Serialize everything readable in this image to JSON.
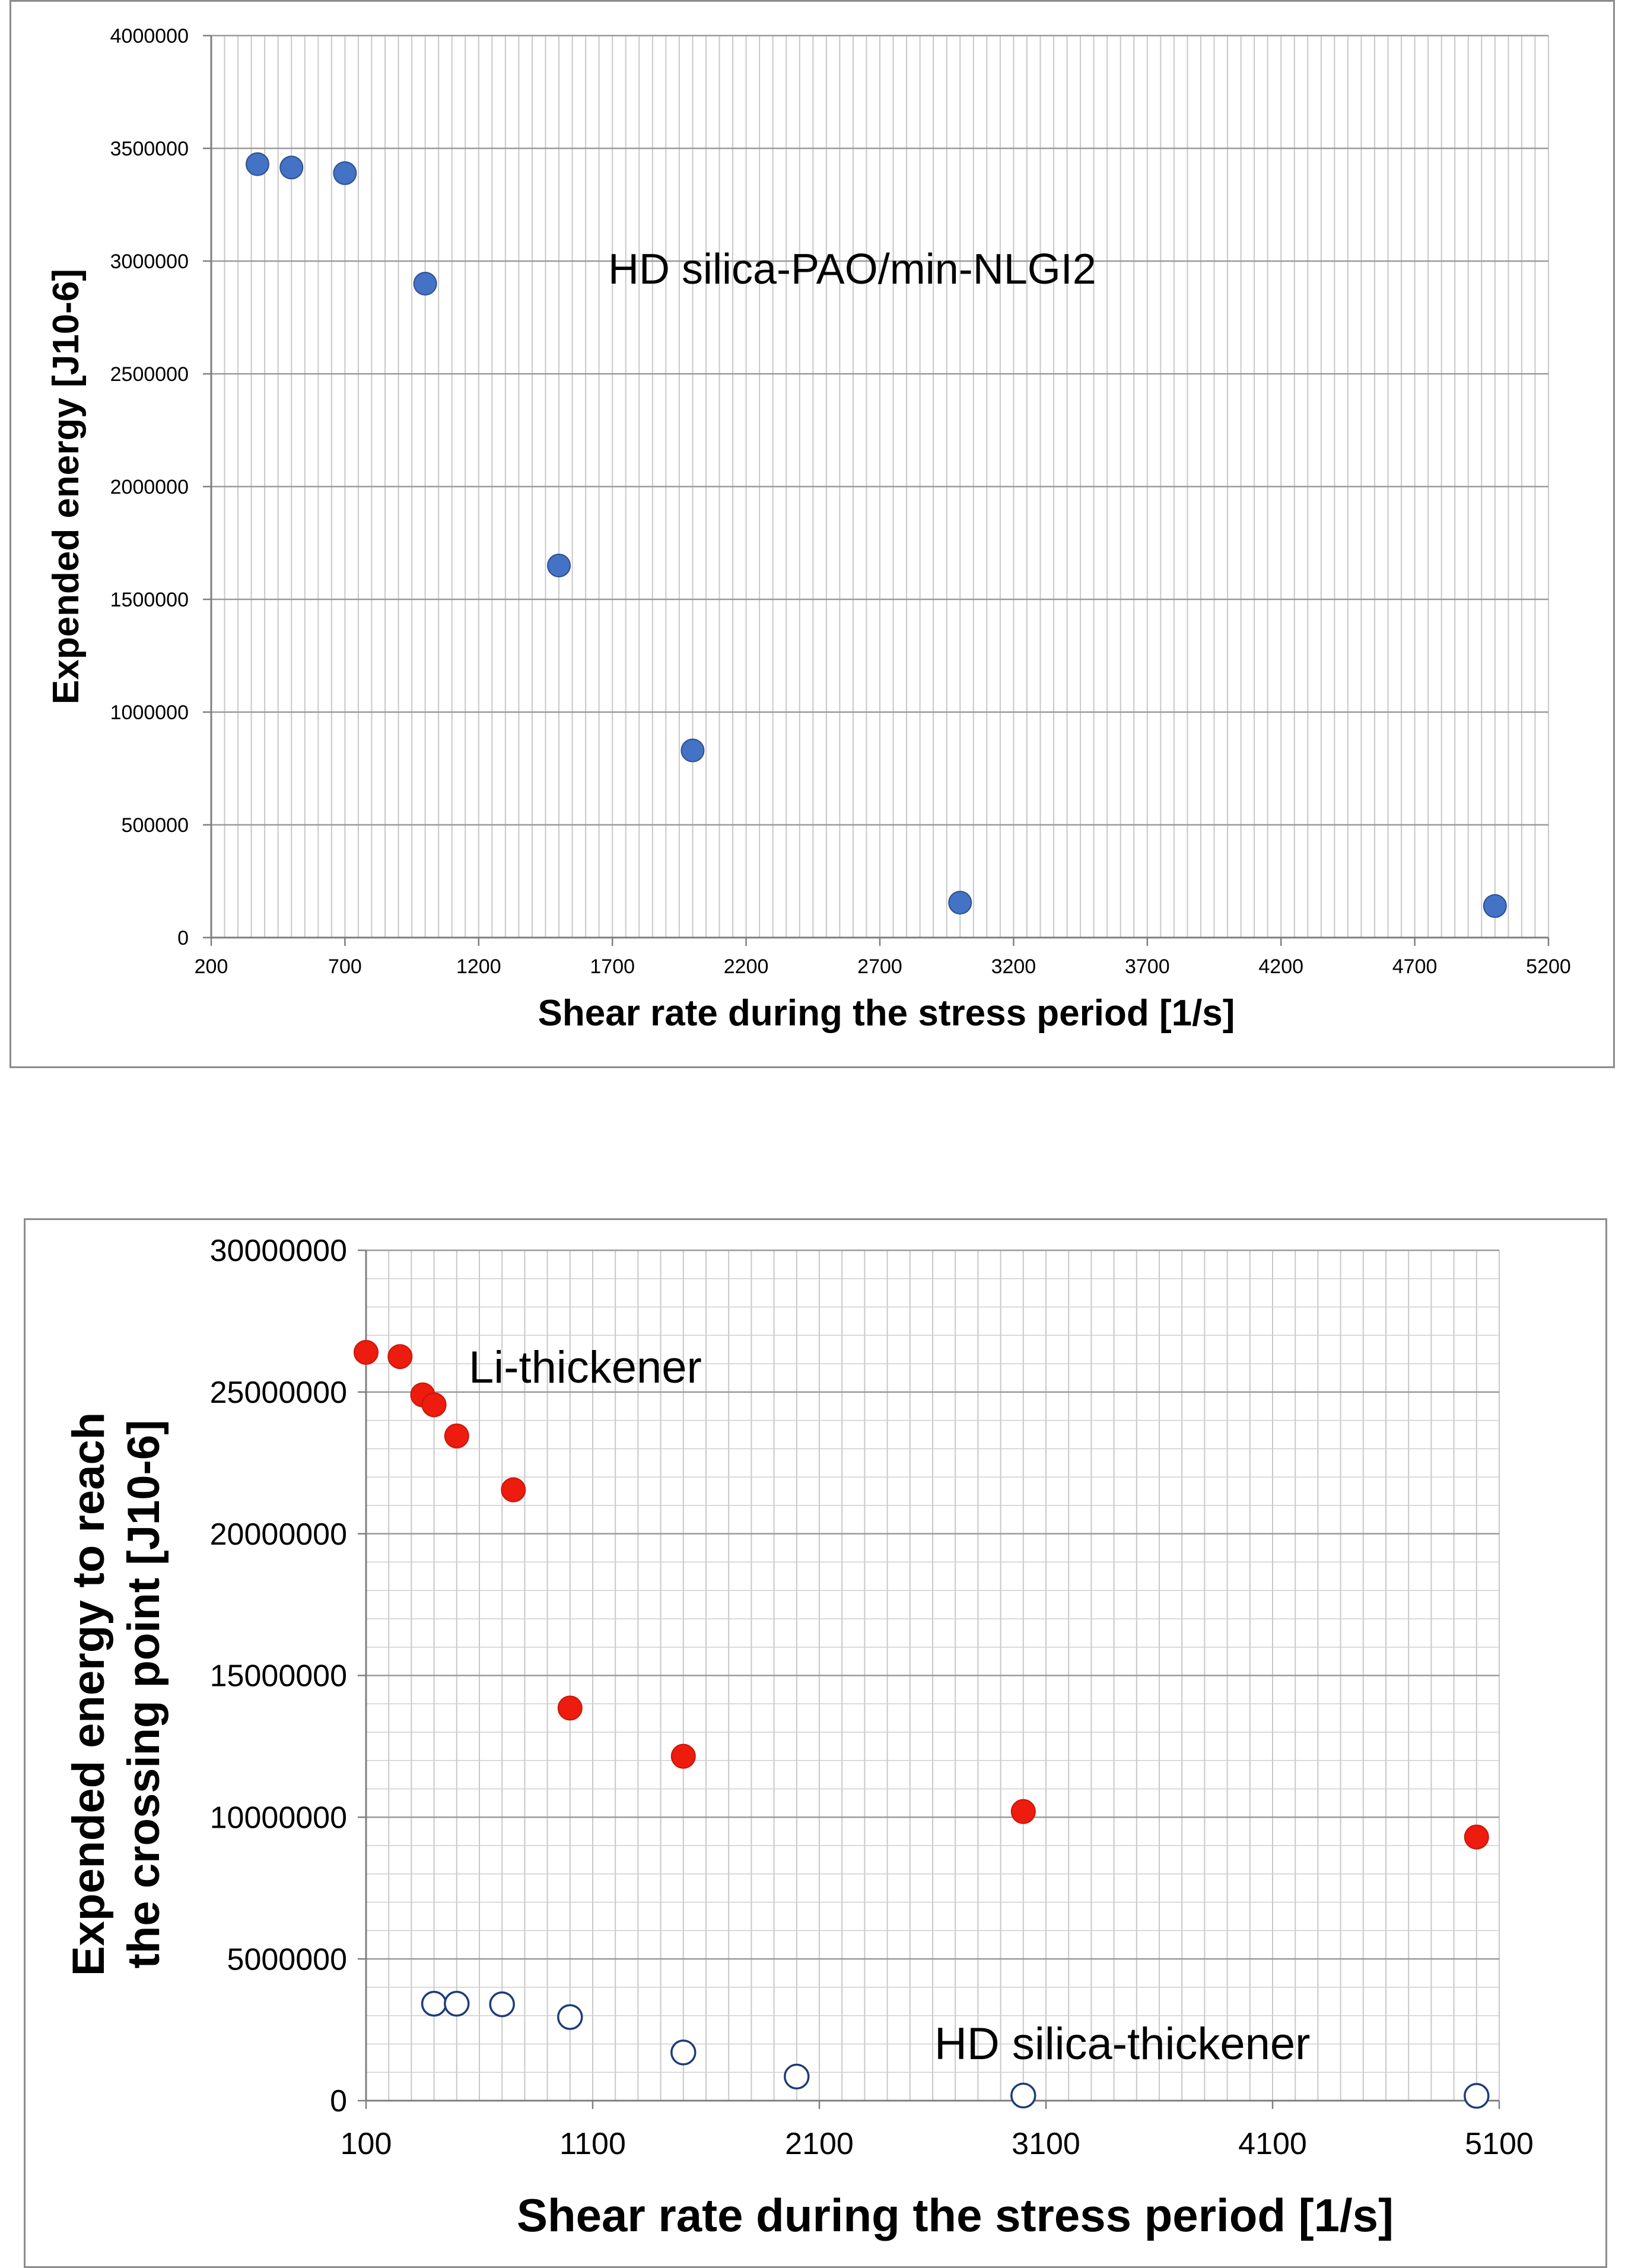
{
  "chart_data": [
    {
      "type": "scatter",
      "title": "",
      "xlabel": "Shear rate during the stress period [1/s]",
      "ylabel": "Expended energy [J10-6]",
      "xlim": [
        200,
        5200
      ],
      "ylim": [
        0,
        4000000
      ],
      "x_ticks": [
        "200",
        "700",
        "1200",
        "1700",
        "2200",
        "2700",
        "3200",
        "3700",
        "4200",
        "4700",
        "5200"
      ],
      "y_ticks": [
        "0",
        "500000",
        "1000000",
        "1500000",
        "2000000",
        "2500000",
        "3000000",
        "3500000",
        "4000000"
      ],
      "grid": true,
      "annotations": [
        "HD silica-PAO/min-NLGI2"
      ],
      "series": [
        {
          "name": "HD silica-PAO/min-NLGI2",
          "marker": "filled-circle",
          "color": "#4472c4",
          "x": [
            373,
            500,
            700,
            1000,
            1500,
            2000,
            3000,
            5000
          ],
          "y": [
            3430000,
            3415000,
            3390000,
            2900000,
            1650000,
            830000,
            155000,
            140000
          ]
        }
      ]
    },
    {
      "type": "scatter",
      "title": "",
      "xlabel": "Shear rate during the stress period [1/s]",
      "ylabel_lines": [
        "Expended energy to reach",
        "the crossing point [J10-6]"
      ],
      "xlim": [
        100,
        5100
      ],
      "ylim": [
        0,
        30000000
      ],
      "x_ticks": [
        "100",
        "1100",
        "2100",
        "3100",
        "4100",
        "5100"
      ],
      "y_ticks": [
        "0",
        "5000000",
        "10000000",
        "15000000",
        "20000000",
        "25000000",
        "30000000"
      ],
      "grid": true,
      "annotations": [
        "Li-thickener",
        "HD silica-thickener"
      ],
      "series": [
        {
          "name": "Li-thickener",
          "marker": "filled-circle",
          "color": "#ee1c0e",
          "x": [
            100,
            250,
            350,
            400,
            500,
            750,
            1000,
            1500,
            3000,
            5000
          ],
          "y": [
            26400000,
            26250000,
            24900000,
            24550000,
            23450000,
            21550000,
            13850000,
            12150000,
            10200000,
            9300000
          ]
        },
        {
          "name": "HD silica-thickener",
          "marker": "open-circle",
          "color": "#1f3b7a",
          "x": [
            400,
            500,
            700,
            1000,
            1500,
            2000,
            3000,
            5000
          ],
          "y": [
            3420000,
            3420000,
            3400000,
            2950000,
            1700000,
            850000,
            180000,
            170000
          ]
        }
      ]
    }
  ]
}
